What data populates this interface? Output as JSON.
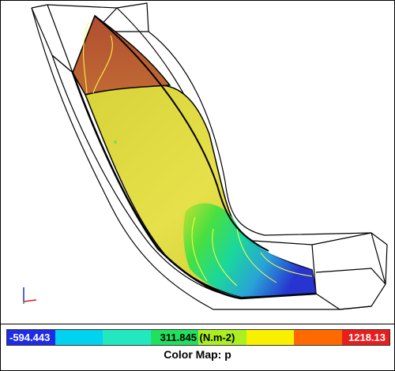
{
  "viewer": {
    "colormap": {
      "min_label": "-594.443",
      "mid_label": "311.845 (N.m-2)",
      "max_label": "1218.13",
      "min": -594.443,
      "mid": 311.845,
      "max": 1218.13,
      "segments": [
        "#1e2ce6",
        "#00d2f0",
        "#22e8c0",
        "#20e060",
        "#aaf020",
        "#f8f000",
        "#ff6a00",
        "#e61e1e"
      ]
    },
    "caption": "Color Map: p",
    "colors": {
      "high": "#b8542e",
      "mid": "#cfce2e",
      "low": "#1f3adc",
      "wireframe": "#000000",
      "contour": "#ffff40"
    }
  }
}
